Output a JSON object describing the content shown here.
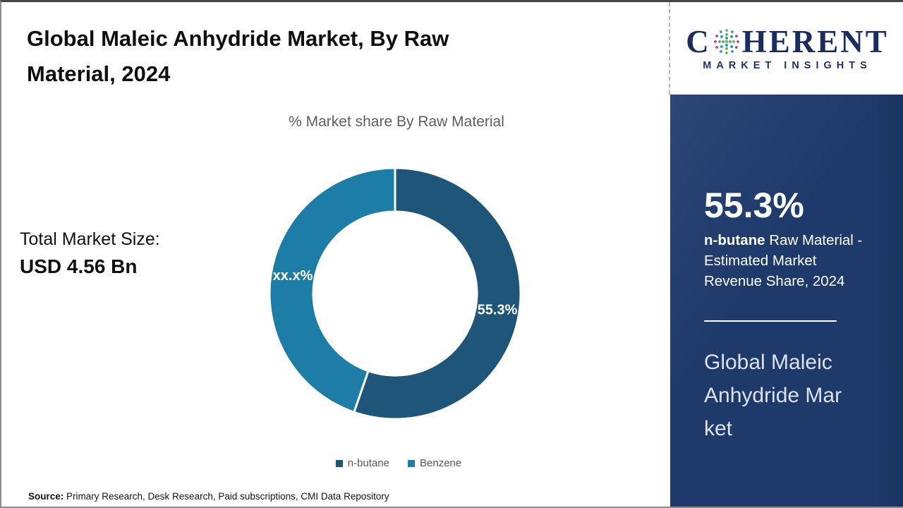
{
  "slide": {
    "title": "Global Maleic Anhydride Market, By Raw Material, 2024",
    "title_lines": [
      "Global Maleic Anhydride Market, By Raw",
      "Material, 2024"
    ],
    "market_size_label": "Total Market Size:",
    "market_size_value": "USD 4.56 Bn",
    "source_label": "Source:",
    "source_text": " Primary Research, Desk Research, Paid subscriptions, CMI Data Repository"
  },
  "chart_data": {
    "type": "pie",
    "donut": true,
    "title": "% Market share By Raw Material",
    "categories": [
      "n-butane",
      "Benzene"
    ],
    "values": [
      55.3,
      44.7
    ],
    "slice_labels": [
      "55.3%",
      "xx.x%"
    ],
    "colors": [
      "#1f5578",
      "#1e7da6"
    ],
    "inner_radius_ratio": 0.652,
    "legend_position": "bottom",
    "start_angle_deg": 0,
    "direction": "clockwise"
  },
  "sidebar": {
    "logo": {
      "brand_c": "C",
      "brand_rest": "HERENT",
      "brand_sub": "MARKET INSIGHTS"
    },
    "stat_value": "55.3%",
    "stat_desc": {
      "bold": "n-butane",
      "line1_rest": " Raw Material -",
      "line2": "Estimated Market",
      "line3": "Revenue Share, 2024"
    },
    "panel_title_lines": [
      "Global Maleic",
      "Anhydride Mar",
      "ket"
    ]
  },
  "colors": {
    "slice_n_butane": "#1f5578",
    "slice_benzene": "#1e7da6",
    "sidebar_navy": "#1e3a6b",
    "logo_navy": "#1b2d5e",
    "subtitle_gray": "#5e5e5e"
  }
}
